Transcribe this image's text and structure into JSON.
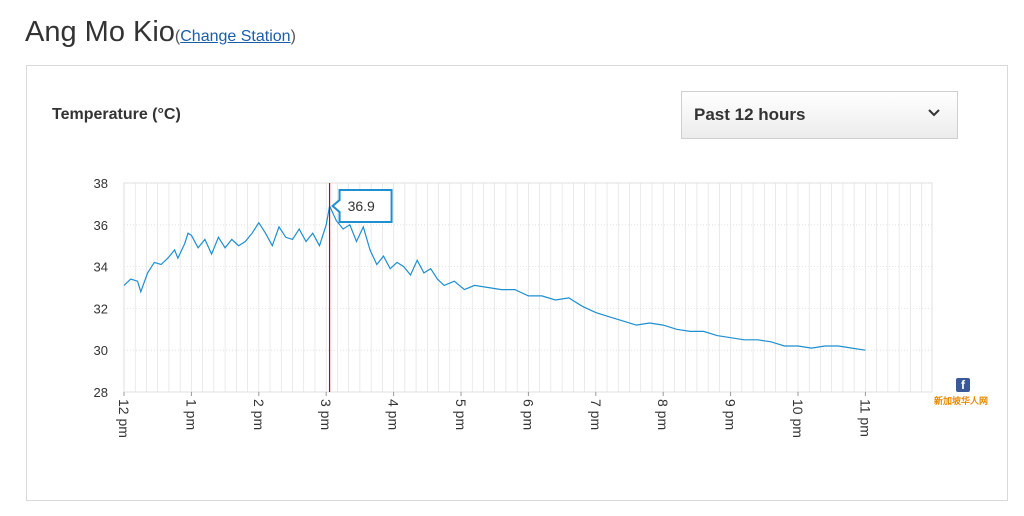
{
  "header": {
    "station_name": "Ang Mo Kio",
    "paren_open": "(",
    "change_station_label": "Change Station",
    "paren_close": ")"
  },
  "panel": {
    "metric_label": "Temperature (°C)",
    "range_selected": "Past 12 hours",
    "watermark_text": "新加坡华人网"
  },
  "colors": {
    "line": "#1e8fd0",
    "crosshair": "#cc0000",
    "tooltip_border": "#1e8fd0",
    "grid": "#dddddd"
  },
  "chart_data": {
    "type": "line",
    "title": "",
    "xlabel": "",
    "ylabel": "",
    "ylim": [
      28,
      38
    ],
    "yticks": [
      28,
      30,
      32,
      34,
      36,
      38
    ],
    "xlim": [
      0,
      12
    ],
    "xtick_values": [
      0,
      1,
      2,
      3,
      4,
      5,
      6,
      7,
      8,
      9,
      10,
      11
    ],
    "xtick_labels": [
      "12 pm",
      "1 pm",
      "2 pm",
      "3 pm",
      "4 pm",
      "5 pm",
      "6 pm",
      "7 pm",
      "8 pm",
      "9 pm",
      "10 pm",
      "11 pm"
    ],
    "grid": true,
    "series": [
      {
        "x": [
          0,
          0.1,
          0.2,
          0.25,
          0.35,
          0.45,
          0.55,
          0.65,
          0.75,
          0.8,
          0.9,
          0.95,
          1.0,
          1.1,
          1.2,
          1.3,
          1.4,
          1.5,
          1.6,
          1.7,
          1.8,
          1.9,
          2.0,
          2.1,
          2.2,
          2.3,
          2.4,
          2.5,
          2.6,
          2.7,
          2.8,
          2.9,
          3.0,
          3.05,
          3.15,
          3.25,
          3.35,
          3.45,
          3.55,
          3.65,
          3.75,
          3.85,
          3.95,
          4.05,
          4.15,
          4.25,
          4.35,
          4.45,
          4.55,
          4.65,
          4.75,
          4.9,
          5.05,
          5.2,
          5.4,
          5.6,
          5.8,
          6.0,
          6.2,
          6.4,
          6.6,
          6.8,
          7.0,
          7.2,
          7.4,
          7.6,
          7.8,
          8.0,
          8.2,
          8.4,
          8.6,
          8.8,
          9.0,
          9.2,
          9.4,
          9.6,
          9.8,
          10.0,
          10.2,
          10.4,
          10.6,
          10.8,
          11.0
        ],
        "values": [
          33.1,
          33.4,
          33.3,
          32.8,
          33.7,
          34.2,
          34.1,
          34.4,
          34.8,
          34.4,
          35.1,
          35.6,
          35.5,
          34.9,
          35.3,
          34.6,
          35.4,
          34.9,
          35.3,
          35.0,
          35.2,
          35.6,
          36.1,
          35.6,
          35.0,
          35.9,
          35.4,
          35.3,
          35.8,
          35.2,
          35.6,
          35.0,
          36.0,
          36.9,
          36.2,
          35.8,
          36.0,
          35.2,
          35.9,
          34.8,
          34.1,
          34.5,
          33.9,
          34.2,
          34.0,
          33.6,
          34.3,
          33.7,
          33.9,
          33.4,
          33.1,
          33.3,
          32.9,
          33.1,
          33.0,
          32.9,
          32.9,
          32.6,
          32.6,
          32.4,
          32.5,
          32.1,
          31.8,
          31.6,
          31.4,
          31.2,
          31.3,
          31.2,
          31.0,
          30.9,
          30.9,
          30.7,
          30.6,
          30.5,
          30.5,
          30.4,
          30.2,
          30.2,
          30.1,
          30.2,
          30.2,
          30.1,
          30.0
        ]
      }
    ],
    "tooltip": {
      "x": 3.05,
      "value": "36.9"
    }
  }
}
